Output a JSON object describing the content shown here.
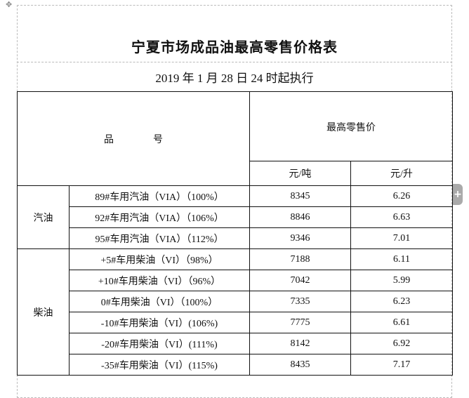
{
  "title": "宁夏市场成品油最高零售价格表",
  "subtitle": "2019 年 1 月 28 日 24 时起执行",
  "header": {
    "product": "品　　　　号",
    "price": "最高零售价",
    "unit_ton": "元/吨",
    "unit_liter": "元/升"
  },
  "groups": [
    {
      "name": "汽油",
      "rows": [
        {
          "product": "89#车用汽油（VIA）（100%）",
          "per_ton": "8345",
          "per_liter": "6.26"
        },
        {
          "product": "92#车用汽油（VIA）（106%）",
          "per_ton": "8846",
          "per_liter": "6.63"
        },
        {
          "product": "95#车用汽油（VIA）（112%）",
          "per_ton": "9346",
          "per_liter": "7.01"
        }
      ]
    },
    {
      "name": "柴油",
      "rows": [
        {
          "product": "+5#车用柴油（VI）（98%）",
          "per_ton": "7188",
          "per_liter": "6.11"
        },
        {
          "product": "+10#车用柴油（VI）（96%）",
          "per_ton": "7042",
          "per_liter": "5.99"
        },
        {
          "product": "0#车用柴油（VI）（100%）",
          "per_ton": "7335",
          "per_liter": "6.23"
        },
        {
          "product": "-10#车用柴油（VI）(106%)",
          "per_ton": "7775",
          "per_liter": "6.61"
        },
        {
          "product": "-20#车用柴油（VI）(111%)",
          "per_ton": "8142",
          "per_liter": "6.92"
        },
        {
          "product": "-35#车用柴油（VI）(115%)",
          "per_ton": "8435",
          "per_liter": "7.17"
        }
      ]
    }
  ],
  "icons": {
    "move": "move-handle-icon",
    "add": "plus-icon"
  }
}
